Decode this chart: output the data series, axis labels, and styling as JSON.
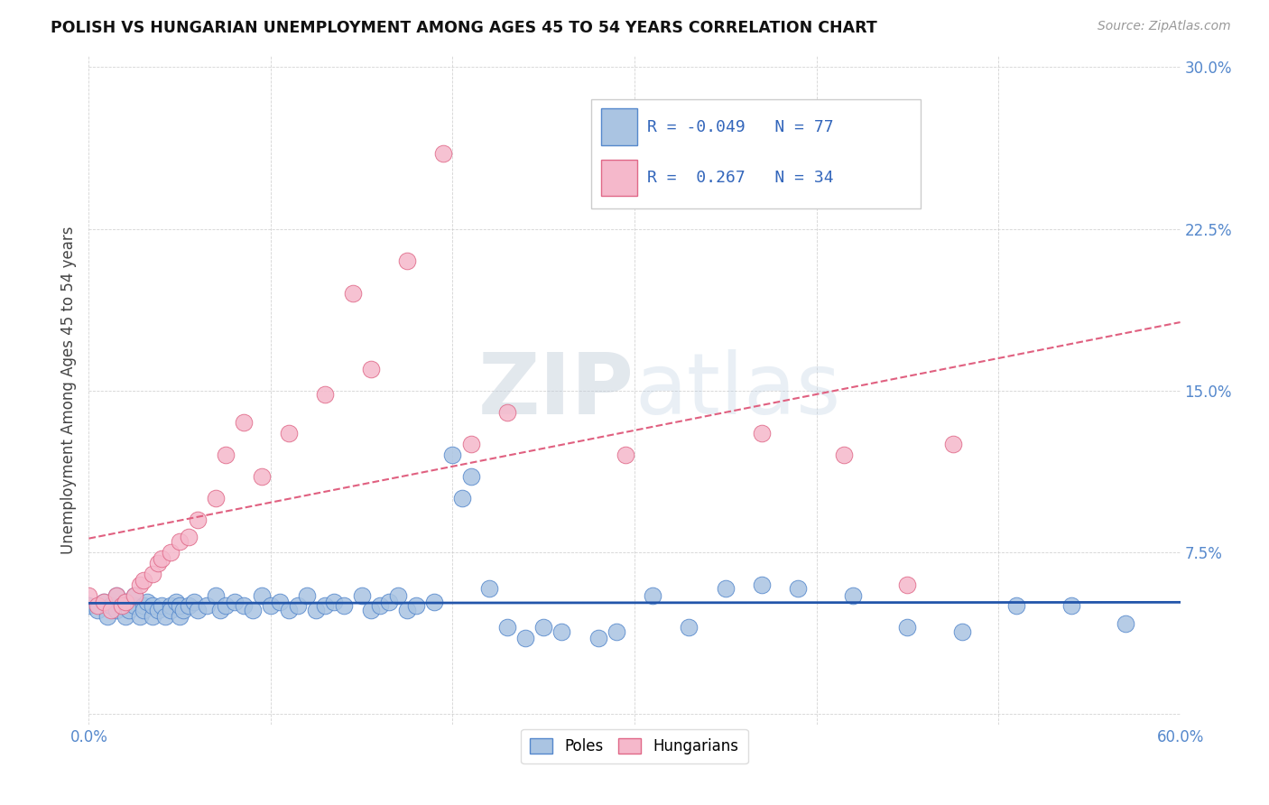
{
  "title": "POLISH VS HUNGARIAN UNEMPLOYMENT AMONG AGES 45 TO 54 YEARS CORRELATION CHART",
  "source": "Source: ZipAtlas.com",
  "ylabel": "Unemployment Among Ages 45 to 54 years",
  "xlim": [
    0.0,
    0.6
  ],
  "ylim": [
    -0.005,
    0.305
  ],
  "xticks": [
    0.0,
    0.1,
    0.2,
    0.3,
    0.4,
    0.5,
    0.6
  ],
  "xtick_labels": [
    "0.0%",
    "",
    "",
    "",
    "",
    "",
    "60.0%"
  ],
  "yticks": [
    0.0,
    0.075,
    0.15,
    0.225,
    0.3
  ],
  "ytick_labels": [
    "",
    "7.5%",
    "15.0%",
    "22.5%",
    "30.0%"
  ],
  "poles_R": "-0.049",
  "poles_N": "77",
  "hung_R": "0.267",
  "hung_N": "34",
  "poles_color": "#aac4e2",
  "poles_edge": "#5588cc",
  "hung_color": "#f5b8cb",
  "hung_edge": "#e06888",
  "trend_poles_color": "#2255aa",
  "trend_hung_color": "#e06080",
  "poles_x": [
    0.0,
    0.005,
    0.008,
    0.01,
    0.012,
    0.015,
    0.015,
    0.018,
    0.02,
    0.02,
    0.022,
    0.025,
    0.025,
    0.028,
    0.03,
    0.03,
    0.032,
    0.035,
    0.035,
    0.038,
    0.04,
    0.042,
    0.045,
    0.045,
    0.048,
    0.05,
    0.05,
    0.052,
    0.055,
    0.058,
    0.06,
    0.065,
    0.07,
    0.072,
    0.075,
    0.08,
    0.085,
    0.09,
    0.095,
    0.1,
    0.105,
    0.11,
    0.115,
    0.12,
    0.125,
    0.13,
    0.135,
    0.14,
    0.15,
    0.155,
    0.16,
    0.165,
    0.17,
    0.175,
    0.18,
    0.19,
    0.2,
    0.205,
    0.21,
    0.22,
    0.23,
    0.24,
    0.25,
    0.26,
    0.28,
    0.29,
    0.31,
    0.33,
    0.35,
    0.37,
    0.39,
    0.42,
    0.45,
    0.48,
    0.51,
    0.54,
    0.57
  ],
  "poles_y": [
    0.05,
    0.048,
    0.052,
    0.045,
    0.05,
    0.048,
    0.055,
    0.05,
    0.045,
    0.052,
    0.048,
    0.05,
    0.055,
    0.045,
    0.05,
    0.048,
    0.052,
    0.045,
    0.05,
    0.048,
    0.05,
    0.045,
    0.05,
    0.048,
    0.052,
    0.045,
    0.05,
    0.048,
    0.05,
    0.052,
    0.048,
    0.05,
    0.055,
    0.048,
    0.05,
    0.052,
    0.05,
    0.048,
    0.055,
    0.05,
    0.052,
    0.048,
    0.05,
    0.055,
    0.048,
    0.05,
    0.052,
    0.05,
    0.055,
    0.048,
    0.05,
    0.052,
    0.055,
    0.048,
    0.05,
    0.052,
    0.12,
    0.1,
    0.11,
    0.058,
    0.04,
    0.035,
    0.04,
    0.038,
    0.035,
    0.038,
    0.055,
    0.04,
    0.058,
    0.06,
    0.058,
    0.055,
    0.04,
    0.038,
    0.05,
    0.05,
    0.042
  ],
  "hung_x": [
    0.0,
    0.005,
    0.008,
    0.012,
    0.015,
    0.018,
    0.02,
    0.025,
    0.028,
    0.03,
    0.035,
    0.038,
    0.04,
    0.045,
    0.05,
    0.055,
    0.06,
    0.07,
    0.075,
    0.085,
    0.095,
    0.11,
    0.13,
    0.145,
    0.155,
    0.175,
    0.195,
    0.21,
    0.23,
    0.295,
    0.37,
    0.415,
    0.45,
    0.475
  ],
  "hung_y": [
    0.055,
    0.05,
    0.052,
    0.048,
    0.055,
    0.05,
    0.052,
    0.055,
    0.06,
    0.062,
    0.065,
    0.07,
    0.072,
    0.075,
    0.08,
    0.082,
    0.09,
    0.1,
    0.12,
    0.135,
    0.11,
    0.13,
    0.148,
    0.195,
    0.16,
    0.21,
    0.26,
    0.125,
    0.14,
    0.12,
    0.13,
    0.12,
    0.06,
    0.125
  ]
}
